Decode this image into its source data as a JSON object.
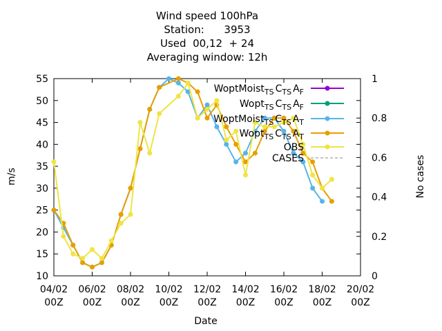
{
  "title_lines": [
    "Wind speed 100hPa",
    "Station:      3953",
    "Used  00,12  + 24",
    "Averaging window: 12h"
  ],
  "chart_data": {
    "type": "line",
    "title": "Wind speed 100hPa",
    "xlabel": "Date",
    "ylabel": "m/s",
    "y2label": "No cases",
    "xlim": [
      0,
      16
    ],
    "ylim": [
      10,
      55
    ],
    "y2lim": [
      0,
      1
    ],
    "x_ticks": [
      0,
      2,
      4,
      6,
      8,
      10,
      12,
      14,
      16
    ],
    "x_tick_labels": [
      [
        "04/02",
        "00Z"
      ],
      [
        "06/02",
        "00Z"
      ],
      [
        "08/02",
        "00Z"
      ],
      [
        "10/02",
        "00Z"
      ],
      [
        "12/02",
        "00Z"
      ],
      [
        "14/02",
        "00Z"
      ],
      [
        "16/02",
        "00Z"
      ],
      [
        "18/02",
        "00Z"
      ],
      [
        "20/02",
        "00Z"
      ]
    ],
    "y_ticks": [
      10,
      15,
      20,
      25,
      30,
      35,
      40,
      45,
      50,
      55
    ],
    "y2_ticks": [
      0,
      0.2,
      0.4,
      0.6,
      0.8,
      1
    ],
    "y2_tick_labels": [
      "0",
      "0.2",
      "0.4",
      "0.6",
      "0.8",
      "1"
    ],
    "grid": false,
    "legend_position": "top-right",
    "series": [
      {
        "name": "Wopt Moist TS CTS AF",
        "label_parts": [
          [
            "Wopt",
            ""
          ],
          [
            "Moist",
            ""
          ],
          [
            "T",
            "sub"
          ],
          [
            "S",
            "sub"
          ],
          [
            "C",
            ""
          ],
          [
            "T",
            "sub"
          ],
          [
            "S",
            "sub"
          ],
          [
            "A",
            ""
          ],
          [
            "F",
            "sub"
          ]
        ],
        "color": "#9400d3",
        "x": [],
        "y": []
      },
      {
        "name": "Wopt TS CTS AF",
        "label_parts": [
          [
            "Wopt",
            ""
          ],
          [
            "T",
            "sub"
          ],
          [
            "S",
            "sub"
          ],
          [
            "C",
            ""
          ],
          [
            "T",
            "sub"
          ],
          [
            "S",
            "sub"
          ],
          [
            "A",
            ""
          ],
          [
            "F",
            "sub"
          ]
        ],
        "color": "#009e73",
        "x": [],
        "y": []
      },
      {
        "name": "Wopt Moist TS CTS AT",
        "label_parts": [
          [
            "Wopt",
            ""
          ],
          [
            "Moist",
            ""
          ],
          [
            "T",
            "sub"
          ],
          [
            "S",
            "sub"
          ],
          [
            "C",
            ""
          ],
          [
            "T",
            "sub"
          ],
          [
            "S",
            "sub"
          ],
          [
            "A",
            ""
          ],
          [
            "T",
            "sub"
          ]
        ],
        "color": "#56b4e9",
        "x": [
          0,
          0.5,
          1,
          1.5,
          2,
          2.5,
          3,
          3.5,
          4,
          4.5,
          5,
          5.5,
          6,
          6.5,
          7,
          7.5,
          8,
          8.5,
          9,
          9.5,
          10,
          10.5,
          11,
          11.5,
          12,
          12.5,
          13,
          13.5,
          14,
          14.5,
          15,
          15.5
        ],
        "y": [
          25,
          21,
          17,
          13,
          12,
          13,
          17,
          24,
          30,
          39,
          48,
          53,
          55,
          54,
          52,
          46,
          49,
          44,
          40,
          36,
          38,
          43,
          46,
          46,
          43,
          38,
          36,
          30,
          27,
          null,
          null,
          null
        ]
      },
      {
        "name": "Wopt TS CTS AT",
        "label_parts": [
          [
            "Wopt",
            ""
          ],
          [
            "T",
            "sub"
          ],
          [
            "S",
            "sub"
          ],
          [
            "C",
            ""
          ],
          [
            "T",
            "sub"
          ],
          [
            "S",
            "sub"
          ],
          [
            "A",
            ""
          ],
          [
            "T",
            "sub"
          ]
        ],
        "color": "#e69f00",
        "x": [
          0,
          0.5,
          1,
          1.5,
          2,
          2.5,
          3,
          3.5,
          4,
          4.5,
          5,
          5.5,
          6.5,
          7,
          7.5,
          8,
          8.5,
          9,
          9.5,
          10,
          10.5,
          11,
          11.5,
          12,
          12.5,
          13,
          13.5,
          14,
          14.5
        ],
        "y": [
          25,
          22,
          17,
          13,
          12,
          13,
          17,
          24,
          30,
          39,
          48,
          53,
          55,
          54,
          52,
          46,
          49,
          44,
          40,
          36,
          38,
          43,
          46,
          46,
          43,
          38,
          36,
          30,
          27
        ]
      },
      {
        "name": "OBS",
        "label_parts": [
          [
            "OBS",
            ""
          ]
        ],
        "color": "#f0e442",
        "x": [
          0,
          0.5,
          1,
          1.5,
          2,
          2.5,
          3,
          3.5,
          4,
          4.5,
          5,
          5.5,
          6.5,
          7,
          7.5,
          8,
          8.5,
          9,
          9.5,
          10,
          10.5,
          11,
          11.5,
          12,
          12.5,
          13,
          13.5,
          14,
          14.5
        ],
        "y": [
          36,
          19,
          15,
          14,
          16,
          14,
          18,
          22,
          24,
          45,
          38,
          47,
          51,
          54,
          46,
          48,
          50,
          41,
          43,
          33,
          45,
          44,
          44,
          45,
          46,
          40,
          33,
          30,
          32
        ]
      },
      {
        "name": "CASES",
        "label_parts": [
          [
            "CASES",
            ""
          ]
        ],
        "color": "#888888",
        "dashed": true,
        "x": [],
        "y": []
      }
    ]
  }
}
